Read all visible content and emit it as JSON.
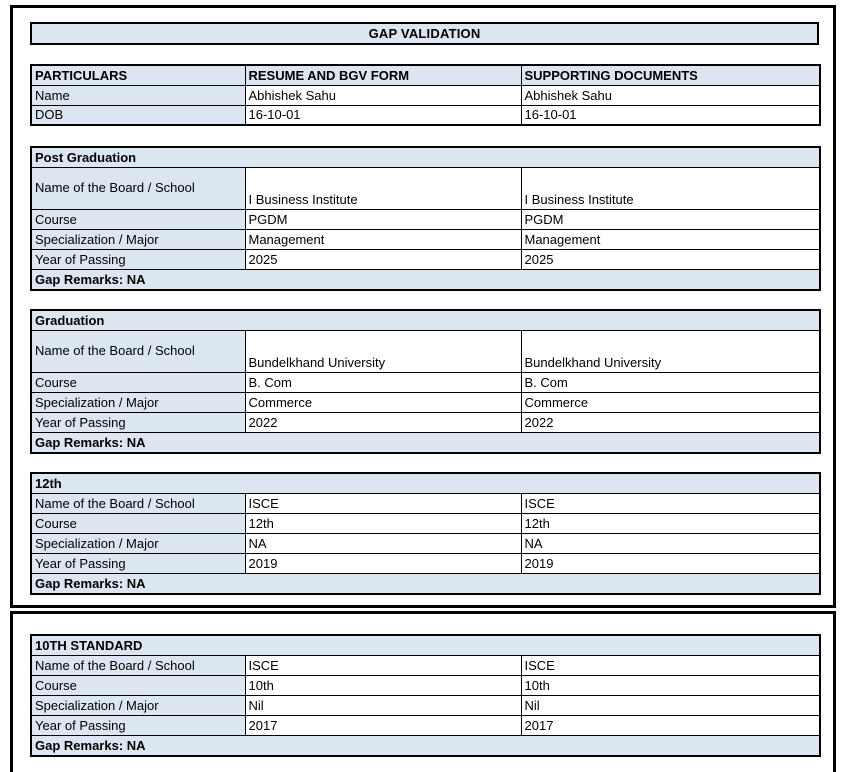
{
  "title": "GAP VALIDATION",
  "colors": {
    "section_fill": "#dce6f1",
    "border": "#000000",
    "text": "#000000",
    "page_background": "#ffffff"
  },
  "personal_table": {
    "headers": [
      "PARTICULARS",
      "RESUME AND BGV FORM",
      "SUPPORTING DOCUMENTS"
    ],
    "rows": [
      {
        "label": "Name",
        "resume": "Abhishek Sahu",
        "supporting": "Abhishek Sahu"
      },
      {
        "label": "DOB",
        "resume": "16-10-01",
        "supporting": "16-10-01"
      }
    ]
  },
  "sections": [
    {
      "title": "Post Graduation",
      "rows": [
        {
          "label": "Name of the Board / School",
          "resume": "I Business Institute",
          "supporting": "I Business Institute"
        },
        {
          "label": "Course",
          "resume": "PGDM",
          "supporting": "PGDM"
        },
        {
          "label": "Specialization / Major",
          "resume": "Management",
          "supporting": "Management"
        },
        {
          "label": "Year of Passing",
          "resume": "2025",
          "supporting": "2025"
        }
      ],
      "gap_remarks": "Gap Remarks: NA"
    },
    {
      "title": "Graduation",
      "rows": [
        {
          "label": "Name of the Board / School",
          "resume": "Bundelkhand University",
          "supporting": "Bundelkhand University"
        },
        {
          "label": "Course",
          "resume": "B. Com",
          "supporting": "B. Com"
        },
        {
          "label": "Specialization / Major",
          "resume": "Commerce",
          "supporting": "Commerce"
        },
        {
          "label": "Year of Passing",
          "resume": "2022",
          "supporting": "2022"
        }
      ],
      "gap_remarks": "Gap Remarks: NA"
    },
    {
      "title": "12th",
      "rows": [
        {
          "label": "Name of the Board / School",
          "resume": "ISCE",
          "supporting": "ISCE"
        },
        {
          "label": "Course",
          "resume": "12th",
          "supporting": "12th"
        },
        {
          "label": "Specialization / Major",
          "resume": "NA",
          "supporting": "NA"
        },
        {
          "label": "Year of Passing",
          "resume": "2019",
          "supporting": "2019"
        }
      ],
      "gap_remarks": "Gap Remarks: NA"
    },
    {
      "title": "10TH STANDARD",
      "rows": [
        {
          "label": "Name of the Board / School",
          "resume": "ISCE",
          "supporting": "ISCE"
        },
        {
          "label": "Course",
          "resume": "10th",
          "supporting": "10th"
        },
        {
          "label": "Specialization / Major",
          "resume": "Nil",
          "supporting": "Nil"
        },
        {
          "label": "Year of Passing",
          "resume": "2017",
          "supporting": "2017"
        }
      ],
      "gap_remarks": "Gap Remarks: NA"
    }
  ]
}
